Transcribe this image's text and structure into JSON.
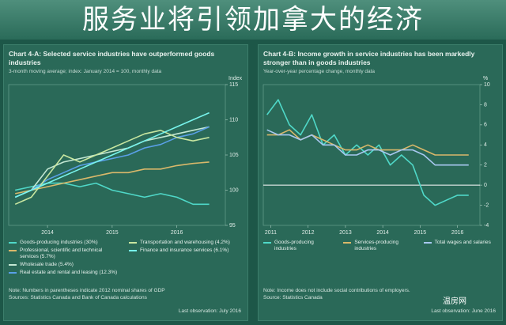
{
  "header": {
    "title": "服务业将引领加拿大的经济",
    "watermark": "温房网"
  },
  "chart_data": [
    {
      "type": "line",
      "title": "Chart 4-A: Selected service industries have outperformed goods industries",
      "subtitle": "3-month moving average; index: January 2014 = 100, monthly data",
      "y_label": "Index",
      "x": [
        2013.5,
        2013.75,
        2014.0,
        2014.25,
        2014.5,
        2014.75,
        2015.0,
        2015.25,
        2015.5,
        2015.75,
        2016.0,
        2016.25,
        2016.5
      ],
      "xlim": [
        2013.4,
        2016.75
      ],
      "xticks": [
        2014,
        2015,
        2016
      ],
      "ylim": [
        95,
        115
      ],
      "yticks": [
        95,
        100,
        105,
        110,
        115
      ],
      "series": [
        {
          "name": "Goods-producing industries (30%)",
          "color": "#4fd8c8",
          "values": [
            100,
            100.5,
            101,
            101,
            100.5,
            101,
            100,
            99.5,
            99,
            99.5,
            99,
            98,
            98
          ]
        },
        {
          "name": "Professional, scientific and technical services (5.7%)",
          "color": "#d9b86a",
          "values": [
            99.5,
            100,
            100.5,
            101,
            101.5,
            102,
            102.5,
            102.5,
            103,
            103,
            103.5,
            103.8,
            104
          ]
        },
        {
          "name": "Wholesale trade (5.4%)",
          "color": "#c4e8d4",
          "values": [
            99,
            100,
            103,
            104,
            104.5,
            105,
            105.5,
            106,
            107,
            107.5,
            108,
            108.5,
            109
          ]
        },
        {
          "name": "Real estate and rental and leasing (12.3%)",
          "color": "#5aa0e8",
          "values": [
            99,
            100,
            101.5,
            102.5,
            103.5,
            104,
            104.5,
            105,
            106,
            106.5,
            107.5,
            108,
            109
          ]
        },
        {
          "name": "Transportation and warehousing (4.2%)",
          "color": "#c8e6a0",
          "values": [
            98,
            99,
            102,
            105,
            104,
            105,
            106,
            107,
            108,
            108.5,
            107.5,
            107,
            107.5
          ]
        },
        {
          "name": "Finance and insurance services (6.1%)",
          "color": "#78f4ec",
          "values": [
            99,
            100,
            101,
            102,
            103,
            104,
            105,
            106,
            107,
            108,
            109,
            110,
            111
          ]
        }
      ],
      "notes": [
        "Note: Numbers in parentheses indicate 2012 nominal shares of GDP",
        "Sources: Statistics Canada and Bank of Canada calculations"
      ],
      "last_observation": "Last observation: July 2016"
    },
    {
      "type": "line",
      "title": "Chart 4-B: Income growth in service industries has been markedly stronger than in goods industries",
      "subtitle": "Year-over-year percentage change, monthly data",
      "y_label": "%",
      "x": [
        2010.9,
        2011.2,
        2011.5,
        2011.8,
        2012.1,
        2012.4,
        2012.7,
        2013.0,
        2013.3,
        2013.6,
        2013.9,
        2014.2,
        2014.5,
        2014.8,
        2015.1,
        2015.4,
        2015.7,
        2016.0,
        2016.3
      ],
      "xlim": [
        2010.8,
        2016.6
      ],
      "xticks": [
        2011,
        2012,
        2013,
        2014,
        2015,
        2016
      ],
      "ylim": [
        -4,
        10
      ],
      "yticks": [
        -4,
        -2,
        0,
        2,
        4,
        6,
        8,
        10
      ],
      "reference_line": 0,
      "series": [
        {
          "name": "Goods-producing industries",
          "color": "#4fd8c8",
          "values": [
            7,
            8.5,
            6,
            5,
            7,
            4,
            5,
            3,
            4,
            3,
            4,
            2,
            3,
            2,
            -1,
            -2,
            -1.5,
            -1,
            -1
          ]
        },
        {
          "name": "Services-producing industries",
          "color": "#d9b86a",
          "values": [
            5,
            5,
            5.5,
            4.5,
            5,
            4.5,
            4,
            3.5,
            3.5,
            4,
            3.5,
            3.5,
            3.5,
            4,
            3.5,
            3,
            3,
            3,
            3
          ]
        },
        {
          "name": "Total wages and salaries",
          "color": "#a8c8f0",
          "values": [
            5.5,
            5,
            5,
            4.5,
            5,
            4,
            4,
            3,
            3,
            3.5,
            3.5,
            3,
            3.5,
            3.5,
            3,
            2,
            2,
            2,
            2
          ]
        }
      ],
      "notes": [
        "Note: Income does not include social contributions of employers.",
        "Source: Statistics Canada"
      ],
      "last_observation": "Last observation: June 2016"
    }
  ]
}
